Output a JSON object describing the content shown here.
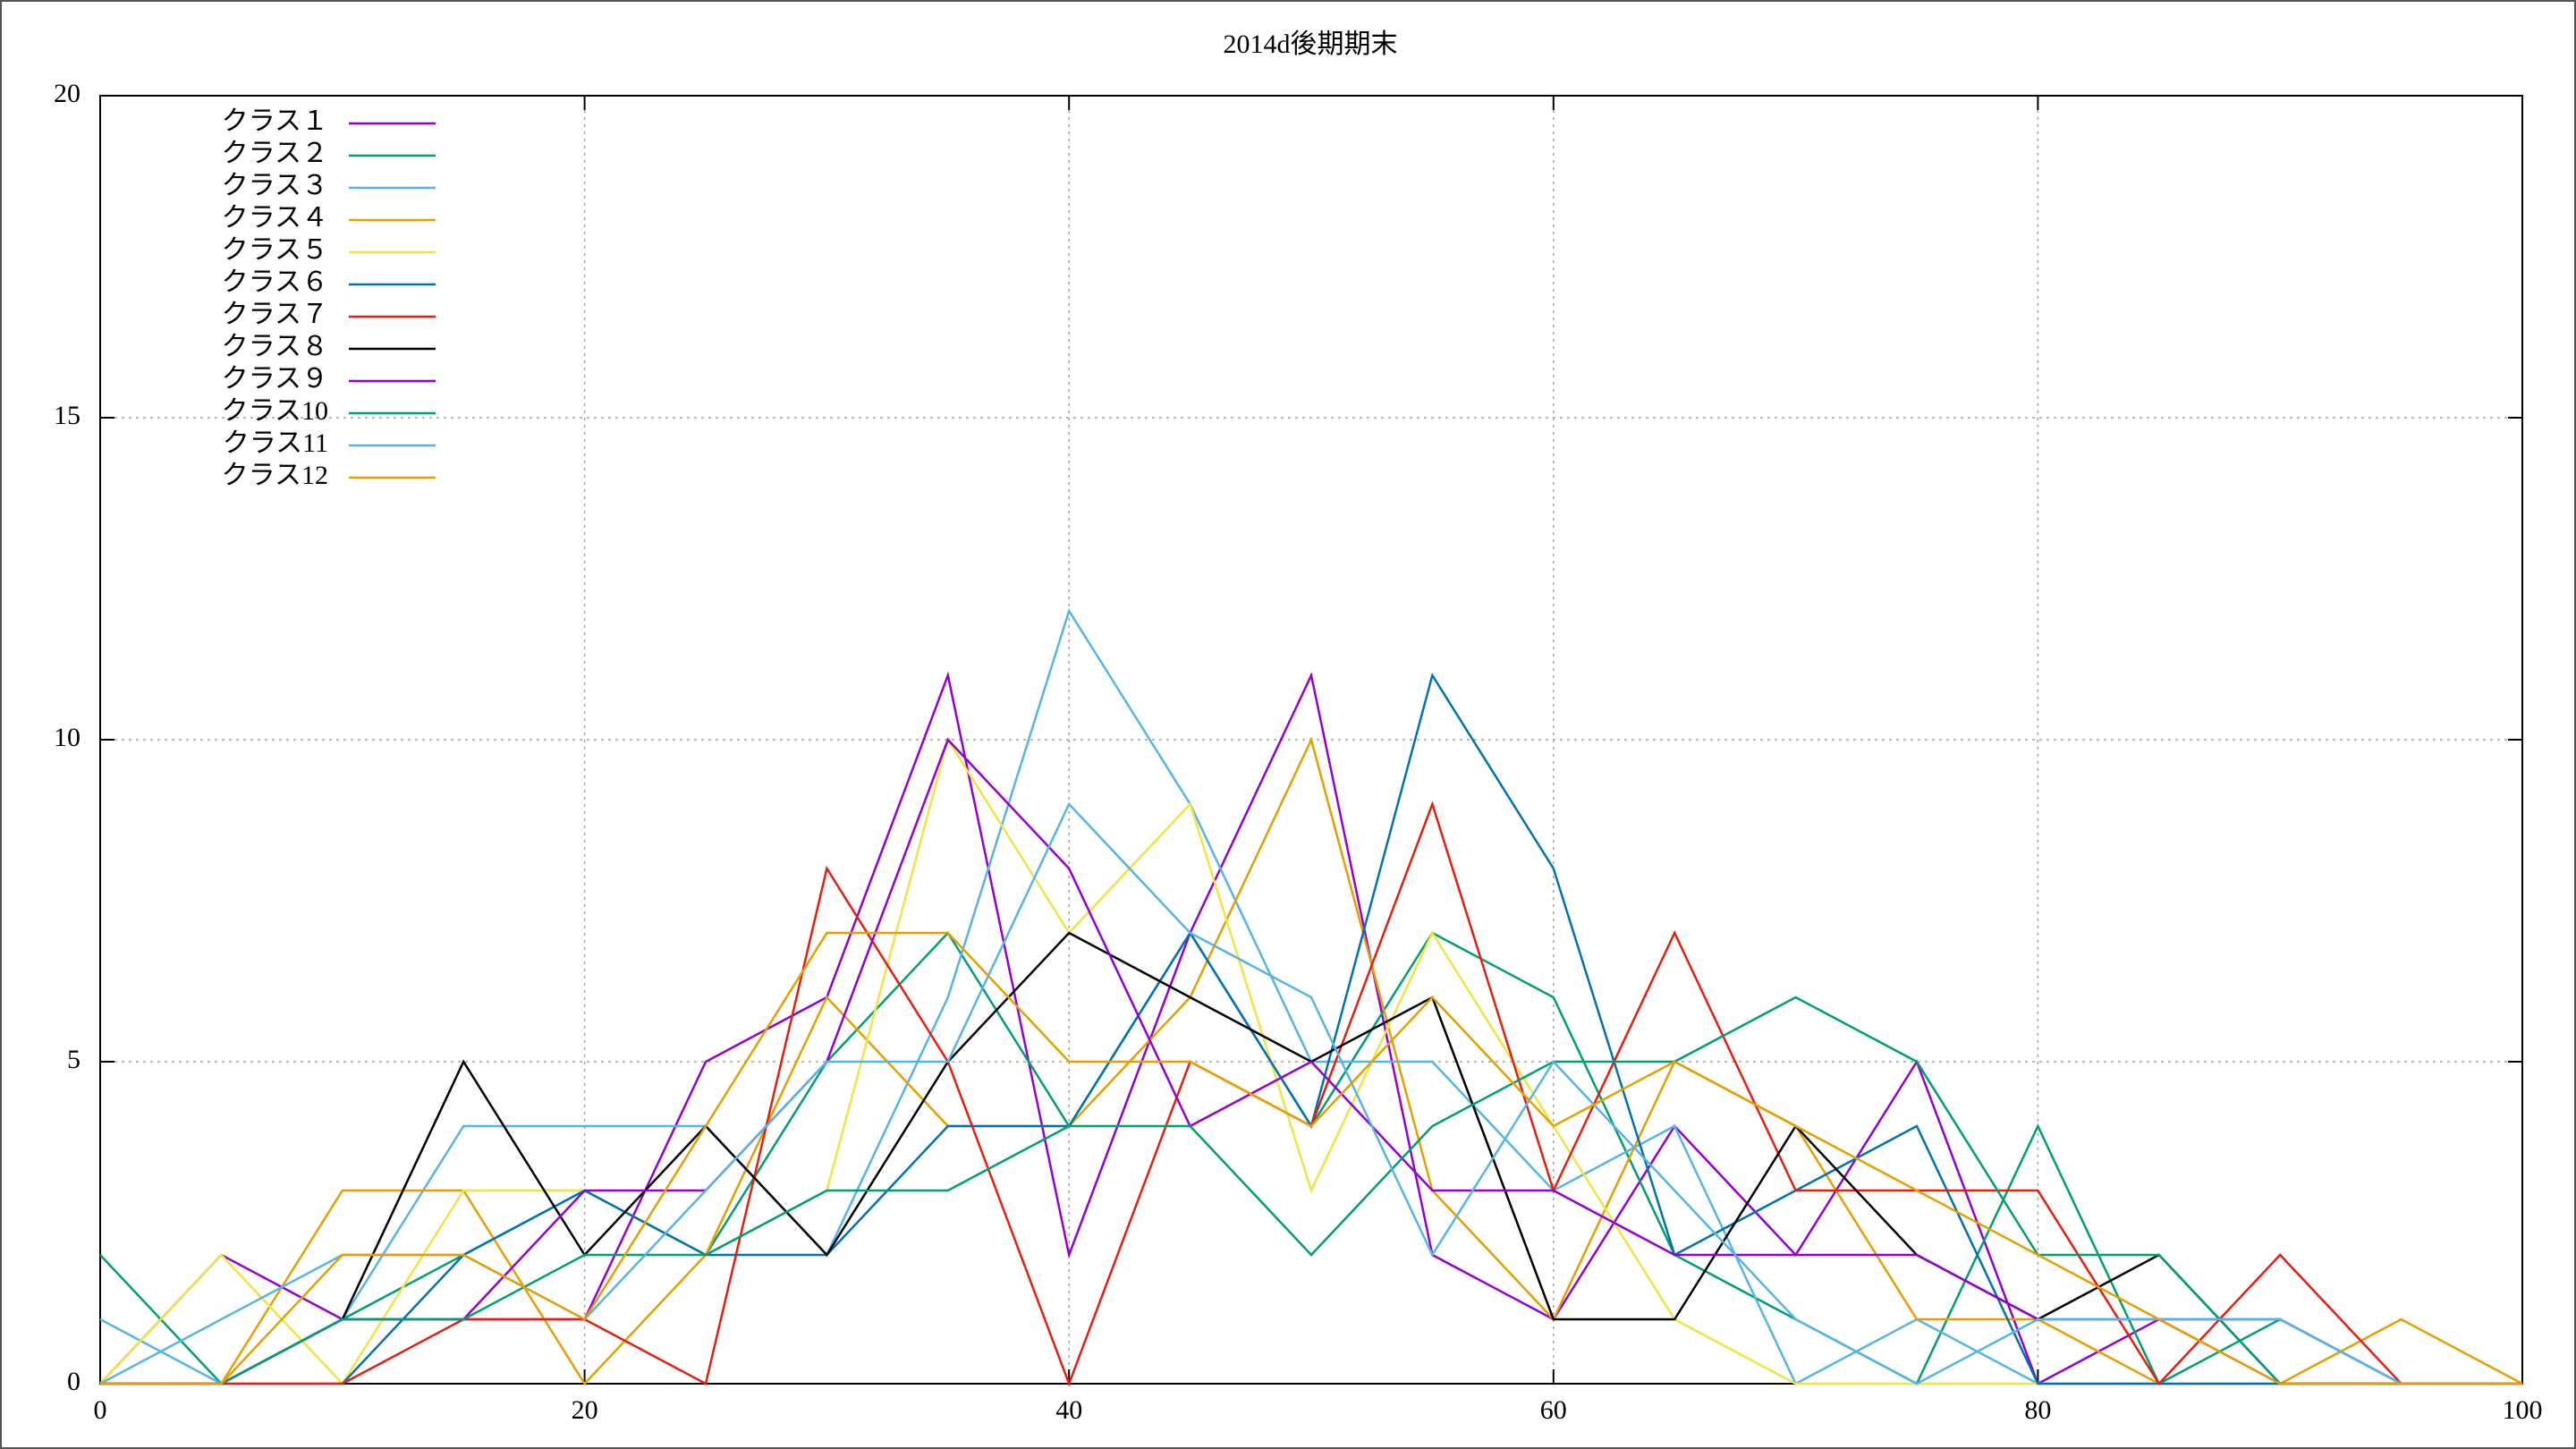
{
  "chart_data": {
    "type": "line",
    "title": "2014d後期期末",
    "x": [
      0,
      5,
      10,
      15,
      20,
      25,
      30,
      35,
      40,
      45,
      50,
      55,
      60,
      65,
      70,
      75,
      80,
      85,
      90,
      95,
      100
    ],
    "xlim": [
      0,
      100
    ],
    "xticks": [
      0,
      20,
      40,
      60,
      80,
      100
    ],
    "ylim": [
      0,
      20
    ],
    "yticks": [
      0,
      5,
      10,
      15,
      20
    ],
    "grid": true,
    "legend": "upper-left",
    "series": [
      {
        "name": "クラス１",
        "color": "#9400d3",
        "values": [
          0,
          2,
          1,
          1,
          1,
          5,
          6,
          11,
          2,
          7,
          11,
          2,
          1,
          4,
          2,
          5,
          0,
          1,
          0,
          0,
          0
        ]
      },
      {
        "name": "クラス２",
        "color": "#009e73",
        "values": [
          2,
          0,
          1,
          2,
          3,
          2,
          5,
          7,
          4,
          7,
          4,
          7,
          6,
          2,
          1,
          0,
          4,
          0,
          1,
          0,
          0
        ]
      },
      {
        "name": "クラス３",
        "color": "#56b4e9",
        "values": [
          1,
          0,
          1,
          4,
          4,
          4,
          2,
          6,
          12,
          9,
          5,
          5,
          3,
          4,
          0,
          1,
          0,
          0,
          0,
          0,
          0
        ]
      },
      {
        "name": "クラス４",
        "color": "#e69f00",
        "values": [
          0,
          0,
          3,
          3,
          0,
          2,
          6,
          4,
          4,
          6,
          10,
          3,
          1,
          5,
          4,
          1,
          1,
          0,
          0,
          1,
          0
        ]
      },
      {
        "name": "クラス５",
        "color": "#f0e442",
        "values": [
          0,
          2,
          0,
          3,
          3,
          2,
          3,
          10,
          7,
          9,
          3,
          7,
          4,
          1,
          0,
          0,
          0,
          0,
          0,
          0,
          0
        ]
      },
      {
        "name": "クラス６",
        "color": "#0072b2",
        "values": [
          0,
          0,
          0,
          2,
          3,
          2,
          2,
          4,
          4,
          7,
          4,
          11,
          8,
          2,
          3,
          4,
          0,
          0,
          0,
          0,
          0
        ]
      },
      {
        "name": "クラス７",
        "color": "#e51e10",
        "values": [
          0,
          0,
          0,
          1,
          1,
          0,
          8,
          5,
          0,
          5,
          4,
          9,
          3,
          7,
          3,
          3,
          3,
          0,
          2,
          0,
          0
        ]
      },
      {
        "name": "クラス８",
        "color": "#000000",
        "values": [
          0,
          0,
          1,
          5,
          2,
          4,
          2,
          5,
          7,
          6,
          5,
          6,
          1,
          1,
          4,
          2,
          1,
          2,
          0,
          0,
          0
        ]
      },
      {
        "name": "クラス９",
        "color": "#9400d3",
        "values": [
          0,
          0,
          1,
          1,
          3,
          3,
          5,
          10,
          8,
          4,
          5,
          3,
          3,
          2,
          2,
          2,
          1,
          1,
          1,
          0,
          0
        ]
      },
      {
        "name": "クラス10",
        "color": "#009e73",
        "values": [
          0,
          0,
          1,
          1,
          2,
          2,
          3,
          3,
          4,
          4,
          2,
          4,
          5,
          5,
          6,
          5,
          2,
          2,
          0,
          0,
          0
        ]
      },
      {
        "name": "クラス11",
        "color": "#56b4e9",
        "values": [
          0,
          1,
          2,
          2,
          1,
          3,
          5,
          5,
          9,
          7,
          6,
          2,
          5,
          3,
          1,
          0,
          1,
          1,
          1,
          0,
          0
        ]
      },
      {
        "name": "クラス12",
        "color": "#e69f00",
        "values": [
          0,
          0,
          2,
          2,
          1,
          4,
          7,
          7,
          5,
          5,
          4,
          6,
          4,
          5,
          4,
          3,
          2,
          1,
          0,
          0,
          0
        ]
      }
    ]
  }
}
